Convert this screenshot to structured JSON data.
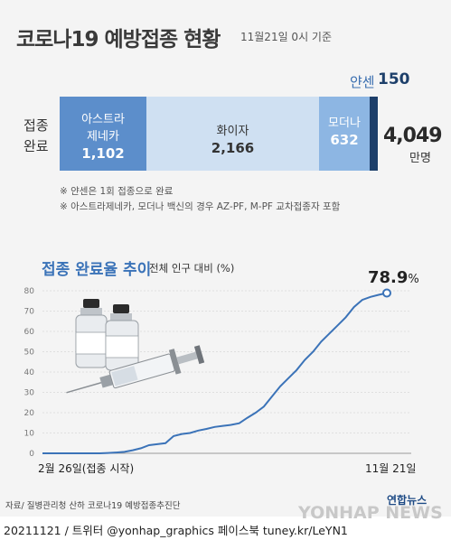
{
  "header": {
    "title": "코로나19 예방접종 현황",
    "date": "11월21일 0시 기준"
  },
  "breakdown": {
    "row_label_line1": "접종",
    "row_label_line2": "완료",
    "segments": [
      {
        "label_line1": "아스트라",
        "label_line2": "제네카",
        "value": "1,102"
      },
      {
        "label_line1": "화이자",
        "label_line2": "",
        "value": "2,166"
      },
      {
        "label_line1": "모더나",
        "label_line2": "",
        "value": "632"
      },
      {
        "label_line1": "얀센",
        "label_line2": "",
        "value": "150"
      }
    ],
    "total_value": "4,049",
    "total_unit": "만명",
    "colors": {
      "astrazeneca": "#5c8ecb",
      "pfizer": "#cfe0f2",
      "moderna": "#8db6e3",
      "janssen": "#1d3f6a"
    }
  },
  "notes": [
    "※ 얀센은 1회 접종으로 완료",
    "※ 아스트라제네카, 모더나 백신의 경우 AZ-PF, M-PF 교차접종자 포함"
  ],
  "trend": {
    "title": "접종 완료율 추이",
    "unit_label": "전체 인구 대비 (%)",
    "start_label": "2월 26일(접종 시작)",
    "end_label": "11월 21일",
    "peak_value": "78.9",
    "peak_unit": "%",
    "accent_color": "#3b73b8",
    "illustration": "vaccine-vials-and-syringe-illustration"
  },
  "chart_data": {
    "type": "line",
    "title": "접종 완료율 추이",
    "ylabel": "전체 인구 대비 (%)",
    "ylim": [
      0,
      80
    ],
    "yticks": [
      "0",
      "10",
      "20",
      "30",
      "40",
      "50",
      "60",
      "70",
      "80"
    ],
    "grid": true,
    "x_start": "2월 26일(접종 시작)",
    "x_end": "11월 21일",
    "series": [
      {
        "values": [
          0,
          0,
          0,
          0,
          0,
          0,
          0,
          0,
          0.2,
          0.4,
          0.7,
          1.5,
          2.5,
          4,
          4.5,
          5,
          8.5,
          9.5,
          10,
          11.2,
          12,
          13,
          13.5,
          14,
          14.8,
          17.5,
          20,
          23,
          28,
          33,
          37,
          41,
          46,
          50,
          55,
          59,
          63,
          67,
          72,
          75.5,
          77,
          78,
          78.9
        ]
      }
    ]
  },
  "footer": {
    "source": "자료/ 질병관리청 산하 코로나19 예방접종추진단",
    "brand": "연합뉴스",
    "watermark": "YONHAP NEWS",
    "credit": "20211121 / 트위터 @yonhap_graphics  페이스북 tuney.kr/LeYN1"
  }
}
